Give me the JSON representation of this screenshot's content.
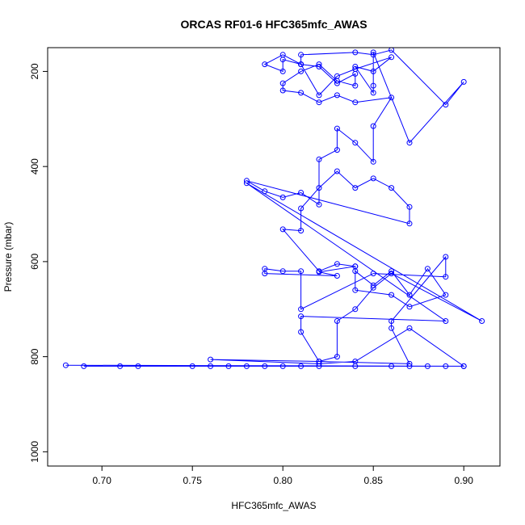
{
  "chart_data": {
    "type": "line",
    "title": "ORCAS RF01-6 HFC365mfc_AWAS",
    "xlabel": "HFC365mfc_AWAS",
    "ylabel": "Pressure (mbar)",
    "xlim": [
      0.67,
      0.92
    ],
    "ylim": [
      1030,
      150
    ],
    "y_reversed": true,
    "x_ticks": [
      0.7,
      0.75,
      0.8,
      0.85,
      0.9
    ],
    "x_tick_labels": [
      "0.70",
      "0.75",
      "0.80",
      "0.85",
      "0.90"
    ],
    "y_ticks": [
      200,
      400,
      600,
      800,
      1000
    ],
    "y_tick_labels": [
      "200",
      "400",
      "600",
      "800",
      "1000"
    ],
    "grid": false,
    "series_color": "#0000ff",
    "x": [
      0.68,
      0.9,
      0.69,
      0.71,
      0.72,
      0.75,
      0.76,
      0.77,
      0.78,
      0.79,
      0.8,
      0.81,
      0.82,
      0.84,
      0.86,
      0.87,
      0.88,
      0.89,
      0.9,
      0.87,
      0.84,
      0.82,
      0.76,
      0.82,
      0.83,
      0.83,
      0.84,
      0.85,
      0.86,
      0.91,
      0.78,
      0.89,
      0.81,
      0.81,
      0.82,
      0.87,
      0.86,
      0.86,
      0.89,
      0.89,
      0.85,
      0.81,
      0.81,
      0.8,
      0.79,
      0.79,
      0.83,
      0.82,
      0.84,
      0.84,
      0.85,
      0.86,
      0.87,
      0.88,
      0.89,
      0.87,
      0.86,
      0.84,
      0.84,
      0.83,
      0.82,
      0.8,
      0.81,
      0.81,
      0.82,
      0.83,
      0.84,
      0.85,
      0.86,
      0.87,
      0.87,
      0.78,
      0.79,
      0.8,
      0.81,
      0.82,
      0.82,
      0.83,
      0.83,
      0.84,
      0.85,
      0.85,
      0.86,
      0.84,
      0.83,
      0.82,
      0.81,
      0.8,
      0.8,
      0.81,
      0.82,
      0.83,
      0.84,
      0.84,
      0.83,
      0.82,
      0.81,
      0.8,
      0.79,
      0.8,
      0.8,
      0.81,
      0.81,
      0.84,
      0.85,
      0.86,
      0.89,
      0.9,
      0.87,
      0.85,
      0.85,
      0.85,
      0.84,
      0.85,
      0.86,
      0.84,
      0.83,
      0.82,
      0.81
    ],
    "y": [
      818,
      820,
      820,
      820,
      820,
      820,
      820,
      820,
      820,
      820,
      820,
      820,
      820,
      820,
      820,
      820,
      820,
      820,
      820,
      740,
      810,
      815,
      806,
      810,
      800,
      725,
      700,
      655,
      625,
      725,
      435,
      725,
      715,
      748,
      810,
      815,
      740,
      725,
      590,
      632,
      625,
      700,
      620,
      620,
      615,
      625,
      630,
      622,
      610,
      620,
      650,
      620,
      670,
      615,
      670,
      695,
      670,
      660,
      610,
      605,
      620,
      532,
      535,
      488,
      445,
      410,
      445,
      425,
      445,
      485,
      520,
      430,
      452,
      465,
      455,
      480,
      385,
      365,
      320,
      350,
      390,
      315,
      255,
      265,
      250,
      265,
      245,
      240,
      225,
      200,
      185,
      220,
      230,
      205,
      225,
      190,
      185,
      165,
      185,
      200,
      175,
      185,
      165,
      160,
      165,
      155,
      270,
      222,
      350,
      160,
      230,
      245,
      190,
      200,
      170,
      195,
      210,
      250,
      185
    ]
  }
}
